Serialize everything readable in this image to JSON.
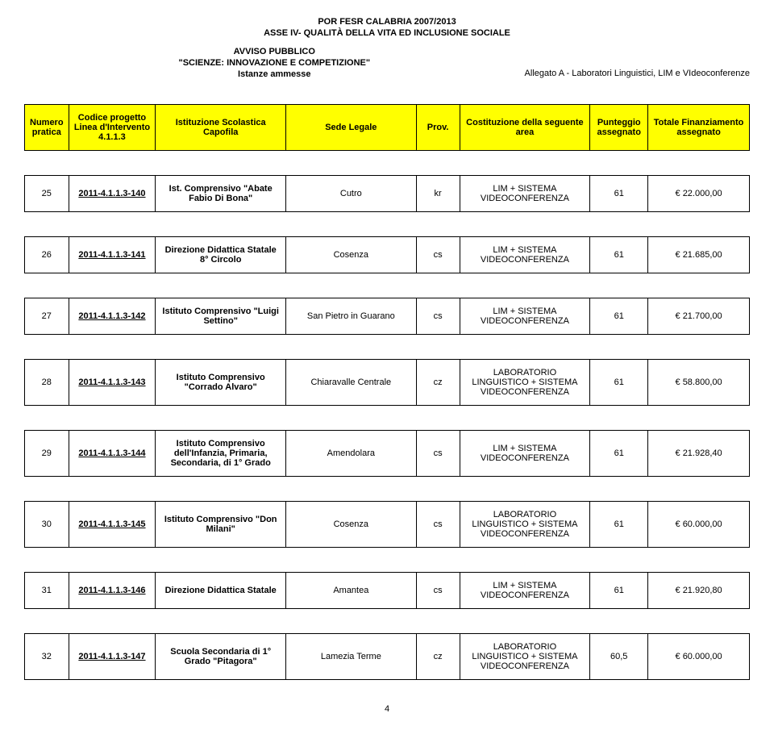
{
  "header": {
    "line1": "POR FESR CALABRIA 2007/2013",
    "line2": "ASSE IV- QUALITÀ DELLA VITA ED INCLUSIONE SOCIALE",
    "line3": "AVVISO PUBBLICO",
    "line4": "\"SCIENZE: INNOVAZIONE E COMPETIZIONE\"",
    "line5": "Istanze ammesse",
    "right": "Allegato A -  Laboratori Linguistici, LIM e VIdeoconferenze"
  },
  "columns": {
    "num": "Numero pratica",
    "code": "Codice progetto Linea d'Intervento 4.1.1.3",
    "inst": "Istituzione Scolastica Capofila",
    "sede": "Sede Legale",
    "prov": "Prov.",
    "area": "Costituzione della seguente area",
    "score": "Punteggio assegnato",
    "fin": "Totale Finanziamento assegnato"
  },
  "rows": [
    {
      "num": "25",
      "code": "2011-4.1.1.3-140",
      "inst": "Ist. Comprensivo \"Abate Fabio Di Bona\"",
      "sede": "Cutro",
      "prov": "kr",
      "area": "LIM + SISTEMA VIDEOCONFERENZA",
      "score": "61",
      "fin": "€ 22.000,00"
    },
    {
      "num": "26",
      "code": "2011-4.1.1.3-141",
      "inst": "Direzione Didattica Statale 8° Circolo",
      "sede": "Cosenza",
      "prov": "cs",
      "area": "LIM + SISTEMA VIDEOCONFERENZA",
      "score": "61",
      "fin": "€ 21.685,00"
    },
    {
      "num": "27",
      "code": "2011-4.1.1.3-142",
      "inst": "Istituto Comprensivo \"Luigi Settino\"",
      "sede": "San Pietro in Guarano",
      "prov": "cs",
      "area": "LIM + SISTEMA VIDEOCONFERENZA",
      "score": "61",
      "fin": "€ 21.700,00"
    },
    {
      "num": "28",
      "code": "2011-4.1.1.3-143",
      "inst": "Istituto Comprensivo \"Corrado Alvaro\"",
      "sede": "Chiaravalle Centrale",
      "prov": "cz",
      "area": "LABORATORIO LINGUISTICO + SISTEMA VIDEOCONFERENZA",
      "score": "61",
      "fin": "€ 58.800,00"
    },
    {
      "num": "29",
      "code": "2011-4.1.1.3-144",
      "inst": "Istituto Comprensivo dell'Infanzia, Primaria, Secondaria, di 1° Grado",
      "sede": "Amendolara",
      "prov": "cs",
      "area": "LIM + SISTEMA VIDEOCONFERENZA",
      "score": "61",
      "fin": "€ 21.928,40"
    },
    {
      "num": "30",
      "code": "2011-4.1.1.3-145",
      "inst": "Istituto Comprensivo \"Don Milani\"",
      "sede": "Cosenza",
      "prov": "cs",
      "area": "LABORATORIO LINGUISTICO + SISTEMA VIDEOCONFERENZA",
      "score": "61",
      "fin": "€ 60.000,00"
    },
    {
      "num": "31",
      "code": "2011-4.1.1.3-146",
      "inst": "Direzione Didattica Statale",
      "sede": "Amantea",
      "prov": "cs",
      "area": "LIM + SISTEMA VIDEOCONFERENZA",
      "score": "61",
      "fin": "€ 21.920,80"
    },
    {
      "num": "32",
      "code": "2011-4.1.1.3-147",
      "inst": "Scuola Secondaria di 1° Grado \"Pitagora\"",
      "sede": "Lamezia Terme",
      "prov": "cz",
      "area": "LABORATORIO LINGUISTICO + SISTEMA VIDEOCONFERENZA",
      "score": "60,5",
      "fin": "€ 60.000,00"
    }
  ],
  "page": "4"
}
